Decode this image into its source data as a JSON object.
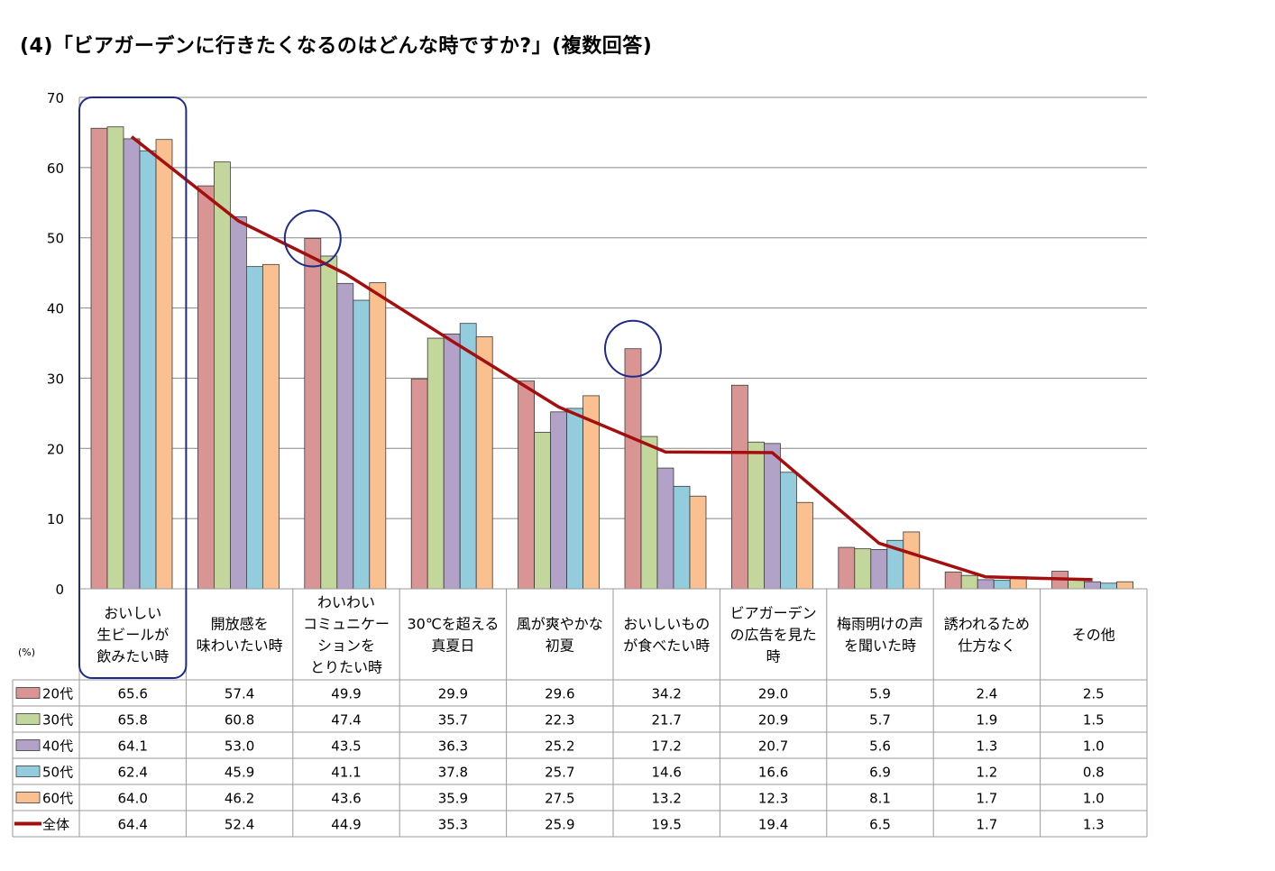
{
  "title": "(4)「ビアガーデンに行きたくなるのはどんな時ですか?」(複数回答)",
  "unit_label": "(%)",
  "chart_data": {
    "type": "bar",
    "title": "(4)「ビアガーデンに行きたくなるのはどんな時ですか?」(複数回答)",
    "ylabel": "(%)",
    "ylim": [
      0,
      70
    ],
    "yticks": [
      0,
      10,
      20,
      30,
      40,
      50,
      60,
      70
    ],
    "grid": true,
    "legend": "data-table",
    "categories": [
      [
        "おいしい",
        "生ビールが",
        "飲みたい時"
      ],
      [
        "開放感を",
        "味わいたい時"
      ],
      [
        "わいわい",
        "コミュニケー",
        "ションを",
        "とりたい時"
      ],
      [
        "30℃を超える",
        "真夏日"
      ],
      [
        "風が爽やかな",
        "初夏"
      ],
      [
        "おいしいもの",
        "が食べたい時"
      ],
      [
        "ビアガーデン",
        "の広告を見た",
        "時"
      ],
      [
        "梅雨明けの声",
        "を聞いた時"
      ],
      [
        "誘われるため",
        "仕方なく"
      ],
      [
        "その他"
      ]
    ],
    "series": [
      {
        "name": "20代",
        "type": "bar",
        "color": "#D99594",
        "values": [
          65.6,
          57.4,
          49.9,
          29.9,
          29.6,
          34.2,
          29.0,
          5.9,
          2.4,
          2.5
        ]
      },
      {
        "name": "30代",
        "type": "bar",
        "color": "#C3D69B",
        "values": [
          65.8,
          60.8,
          47.4,
          35.7,
          22.3,
          21.7,
          20.9,
          5.7,
          1.9,
          1.5
        ]
      },
      {
        "name": "40代",
        "type": "bar",
        "color": "#B2A2C7",
        "values": [
          64.1,
          53.0,
          43.5,
          36.3,
          25.2,
          17.2,
          20.7,
          5.6,
          1.3,
          1.0
        ]
      },
      {
        "name": "50代",
        "type": "bar",
        "color": "#93CDDD",
        "values": [
          62.4,
          45.9,
          41.1,
          37.8,
          25.7,
          14.6,
          16.6,
          6.9,
          1.2,
          0.8
        ]
      },
      {
        "name": "60代",
        "type": "bar",
        "color": "#FAC090",
        "values": [
          64.0,
          46.2,
          43.6,
          35.9,
          27.5,
          13.2,
          12.3,
          8.1,
          1.7,
          1.0
        ]
      },
      {
        "name": "全体",
        "type": "line",
        "color": "#A50E0E",
        "values": [
          64.4,
          52.4,
          44.9,
          35.3,
          25.9,
          19.5,
          19.4,
          6.5,
          1.7,
          1.3
        ]
      }
    ],
    "value_format": "1 decimal",
    "annotations": [
      {
        "shape": "rounded-rectangle",
        "target": "category",
        "index": 0,
        "color": "#1F2A8C"
      },
      {
        "shape": "circle",
        "target": "bar",
        "category": 2,
        "series": "20代",
        "color": "#1F2A8C"
      },
      {
        "shape": "circle",
        "target": "bar",
        "category": 5,
        "series": "20代",
        "color": "#1F2A8C"
      }
    ]
  }
}
